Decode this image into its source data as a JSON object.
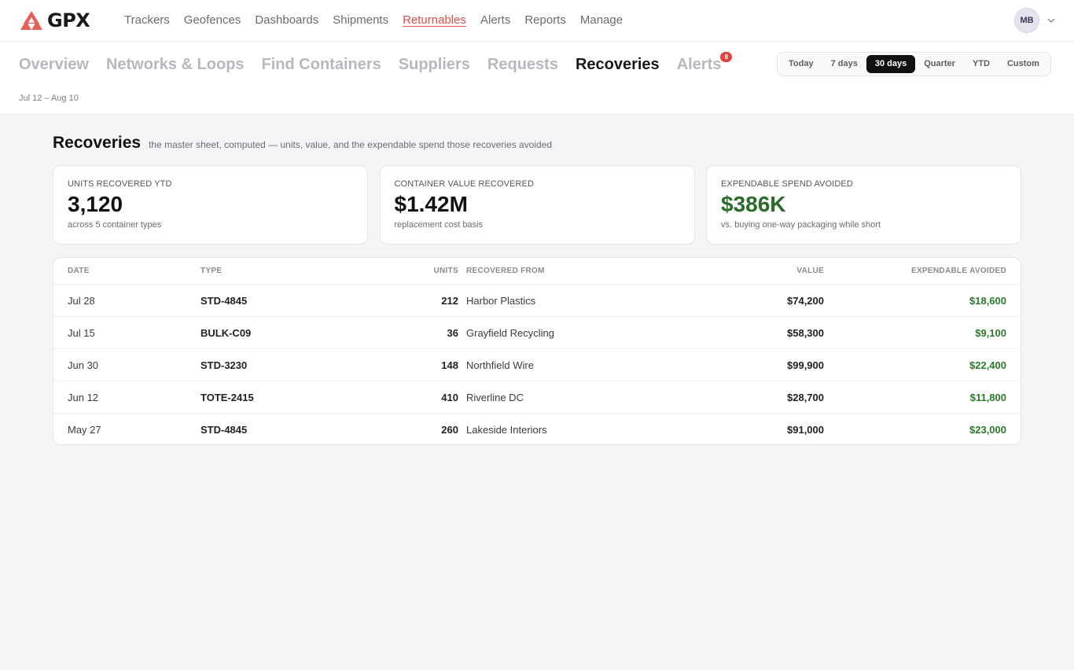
{
  "brand": {
    "name": "GPX"
  },
  "main_nav": [
    {
      "label": "Trackers",
      "active": false
    },
    {
      "label": "Geofences",
      "active": false
    },
    {
      "label": "Dashboards",
      "active": false
    },
    {
      "label": "Shipments",
      "active": false
    },
    {
      "label": "Returnables",
      "active": true
    },
    {
      "label": "Alerts",
      "active": false
    },
    {
      "label": "Reports",
      "active": false
    },
    {
      "label": "Manage",
      "active": false
    }
  ],
  "user": {
    "initials": "MB"
  },
  "sub_nav": [
    {
      "label": "Overview",
      "active": false
    },
    {
      "label": "Networks & Loops",
      "active": false
    },
    {
      "label": "Find Containers",
      "active": false
    },
    {
      "label": "Suppliers",
      "active": false
    },
    {
      "label": "Requests",
      "active": false
    },
    {
      "label": "Recoveries",
      "active": true
    },
    {
      "label": "Alerts",
      "active": false,
      "badge": "8"
    }
  ],
  "date_range": "Jul 12 – Aug 10",
  "range_options": [
    {
      "label": "Today",
      "active": false
    },
    {
      "label": "7 days",
      "active": false
    },
    {
      "label": "30 days",
      "active": true
    },
    {
      "label": "Quarter",
      "active": false
    },
    {
      "label": "YTD",
      "active": false
    },
    {
      "label": "Custom",
      "active": false
    }
  ],
  "page": {
    "title": "Recoveries",
    "description": "the master sheet, computed — units, value, and the expendable spend those recoveries avoided"
  },
  "kpis": [
    {
      "label": "UNITS RECOVERED YTD",
      "value": "3,120",
      "sub": "across 5 container types",
      "accent": false
    },
    {
      "label": "CONTAINER VALUE RECOVERED",
      "value": "$1.42M",
      "sub": "replacement cost basis",
      "accent": false
    },
    {
      "label": "EXPENDABLE SPEND AVOIDED",
      "value": "$386K",
      "sub": "vs. buying one-way packaging while short",
      "accent": true
    }
  ],
  "table": {
    "headers": {
      "date": "DATE",
      "type": "TYPE",
      "units": "UNITS",
      "from": "RECOVERED FROM",
      "value": "VALUE",
      "avoided": "EXPENDABLE AVOIDED"
    },
    "rows": [
      {
        "date": "Jul 28",
        "type": "STD-4845",
        "units": "212",
        "from": "Harbor Plastics",
        "value": "$74,200",
        "avoided": "$18,600"
      },
      {
        "date": "Jul 15",
        "type": "BULK-C09",
        "units": "36",
        "from": "Grayfield Recycling",
        "value": "$58,300",
        "avoided": "$9,100"
      },
      {
        "date": "Jun 30",
        "type": "STD-3230",
        "units": "148",
        "from": "Northfield Wire",
        "value": "$99,900",
        "avoided": "$22,400"
      },
      {
        "date": "Jun 12",
        "type": "TOTE-2415",
        "units": "410",
        "from": "Riverline DC",
        "value": "$28,700",
        "avoided": "$11,800"
      },
      {
        "date": "May 27",
        "type": "STD-4845",
        "units": "260",
        "from": "Lakeside Interiors",
        "value": "$91,000",
        "avoided": "$23,000"
      }
    ]
  },
  "colors": {
    "accent_red": "#e04c4c",
    "positive_green": "#2a7a2a",
    "badge_red": "#e0443e"
  }
}
